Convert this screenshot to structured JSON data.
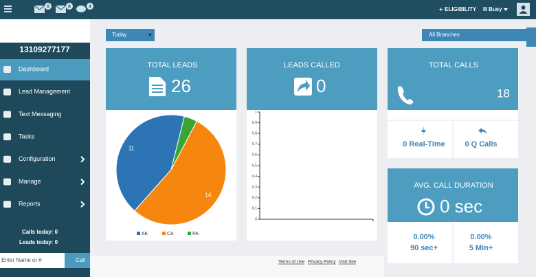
{
  "topbar": {
    "badges": [
      "0",
      "8",
      "4"
    ],
    "eligibility": "ELIGIBILITY",
    "status": "Busy"
  },
  "sidebar": {
    "phone": "13109277177",
    "menu": [
      "Dashboard",
      "Lead Management",
      "Text Messaging",
      "Tasks",
      "Configuration",
      "Manage",
      "Reports"
    ],
    "calls_today": "Calls today: 0",
    "leads_today": "Leads today: 0",
    "search_placeholder": "Enter Name or #",
    "call_button": "Call"
  },
  "filters": {
    "period": "Today",
    "branch": "All Branches"
  },
  "cards": {
    "total_leads": {
      "title": "TOTAL LEADS",
      "value": "26"
    },
    "leads_called": {
      "title": "LEADS CALLED",
      "value": "0"
    },
    "total_calls": {
      "title": "TOTAL CALLS",
      "value": "18",
      "realtime": "0 Real-Time",
      "q_calls": "0 Q Calls"
    },
    "avg_duration": {
      "title": "AVG. CALL DURATION",
      "value": "0 sec",
      "pct_90": "0.00%",
      "label_90": "90 sec+",
      "pct_5": "0.00%",
      "label_5": "5 Min+"
    }
  },
  "leads_pie": {
    "type": "pie",
    "categories": [
      "AK",
      "CA",
      "PA"
    ],
    "values": [
      11,
      14,
      1
    ],
    "colors": [
      "#2c74b4",
      "#f7860f",
      "#36a536"
    ]
  },
  "called_chart": {
    "type": "line",
    "ylim": [
      0,
      1
    ],
    "yticks": [
      0,
      0.1,
      0.2,
      0.3,
      0.4,
      0.5,
      0.6,
      0.7,
      0.8,
      0.9,
      1
    ]
  },
  "footer": [
    "Terms of Use",
    "Privacy Policy",
    "Visit Site"
  ]
}
